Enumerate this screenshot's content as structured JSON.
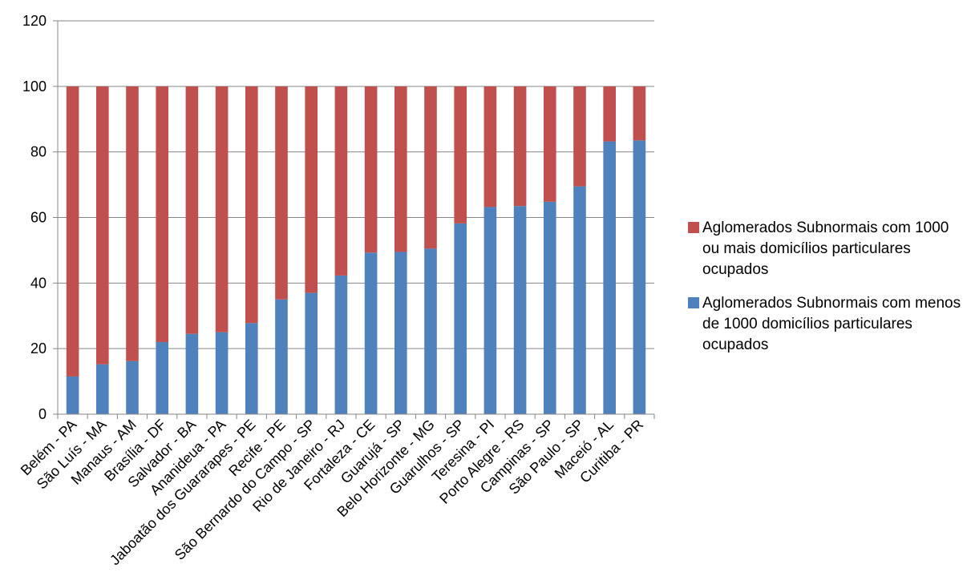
{
  "chart_data": {
    "type": "bar",
    "stacked": true,
    "categories": [
      "Belém - PA",
      "São Luís - MA",
      "Manaus - AM",
      "Brasília - DF",
      "Salvador - BA",
      "Ananideua - PA",
      "Jaboatão dos Guararapes - PE",
      "Recife - PE",
      "São Bernardo do Campo - SP",
      "Rio de Janeiro - RJ",
      "Fortaleza - CE",
      "Guarujá - SP",
      "Belo Horizonte - MG",
      "Guarulhos - SP",
      "Teresina - PI",
      "Porto Alegre - RS",
      "Campinas - SP",
      "São Paulo - SP",
      "Maceió - AL",
      "Curitiba - PR"
    ],
    "series": [
      {
        "name": "Aglomerados Subnormais com menos de 1000 domicílios particulares ocupados",
        "color": "#4f81bd",
        "values": [
          11.5,
          15.2,
          16.2,
          22.0,
          24.5,
          25.0,
          27.8,
          35.0,
          37.0,
          42.3,
          49.3,
          49.5,
          50.5,
          58.2,
          63.2,
          63.5,
          64.8,
          69.5,
          83.2,
          83.5
        ]
      },
      {
        "name": "Aglomerados Subnormais com 1000 ou mais domicílios particulares ocupados",
        "color": "#c0504d",
        "values": [
          88.5,
          84.8,
          83.8,
          78.0,
          75.5,
          75.0,
          72.2,
          65.0,
          63.0,
          57.7,
          50.7,
          50.5,
          49.5,
          41.8,
          36.8,
          36.5,
          35.2,
          30.5,
          16.8,
          16.5
        ]
      }
    ],
    "ylim": [
      0,
      120
    ],
    "yticks": [
      0,
      20,
      40,
      60,
      80,
      100,
      120
    ],
    "grid": true,
    "legend_position": "right",
    "legend": [
      {
        "label": "Aglomerados Subnormais com 1000 ou mais domicílios particulares ocupados",
        "color": "#c0504d"
      },
      {
        "label": "Aglomerados Subnormais com menos de 1000 domicílios particulares ocupados",
        "color": "#4f81bd"
      }
    ]
  }
}
